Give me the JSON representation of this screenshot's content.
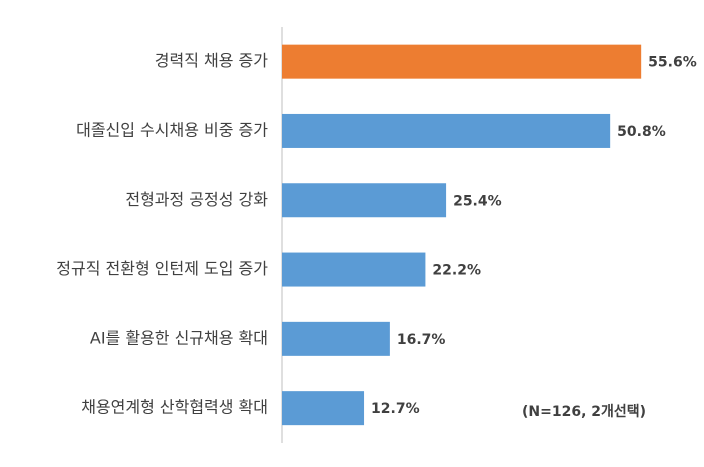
{
  "chart_data": {
    "type": "bar",
    "orientation": "horizontal",
    "categories": [
      "경력직 채용 증가",
      "대졸신입 수시채용 비중 증가",
      "전형과정 공정성 강화",
      "정규직 전환형 인턴제 도입 증가",
      "AI를 활용한 신규채용 확대",
      "채용연계형 산학협력생 확대"
    ],
    "values": [
      55.6,
      50.8,
      25.4,
      22.2,
      16.7,
      12.7
    ],
    "value_labels": [
      "55.6%",
      "50.8%",
      "25.4%",
      "22.2%",
      "16.7%",
      "12.7%"
    ],
    "colors": [
      "#ed7d31",
      "#5b9bd5",
      "#5b9bd5",
      "#5b9bd5",
      "#5b9bd5",
      "#5b9bd5"
    ],
    "annotation": "(N=126, 2개선택)"
  }
}
